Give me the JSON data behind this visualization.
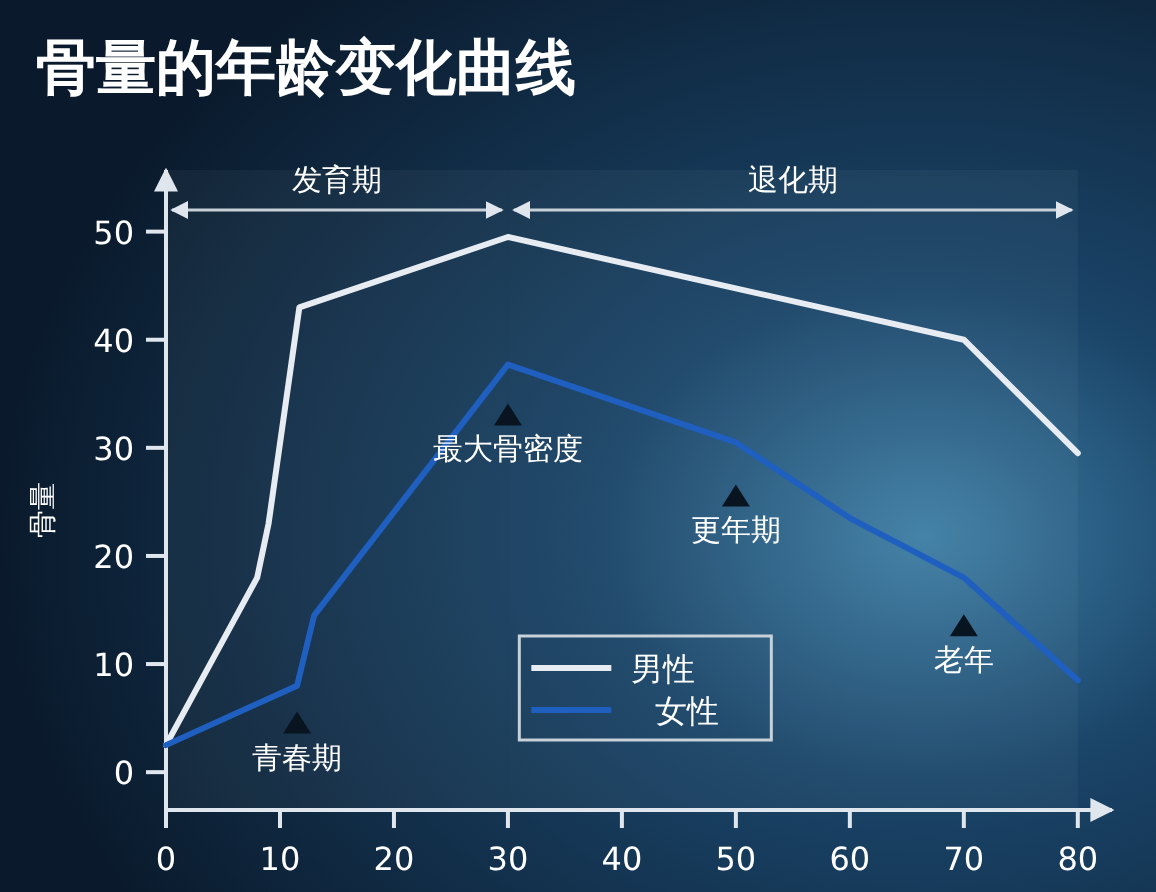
{
  "chart_data": {
    "type": "line",
    "title": "骨量的年龄变化曲线",
    "ylabel": "骨量",
    "xlim": [
      0,
      83
    ],
    "ylim": [
      -3.5,
      55.7
    ],
    "xticks": [
      0,
      10,
      20,
      30,
      40,
      50,
      60,
      70,
      80
    ],
    "yticks": [
      0,
      10,
      20,
      30,
      40,
      50
    ],
    "grid": false,
    "legend": "bottom",
    "marker": "none",
    "line_style": "solid",
    "series": [
      {
        "name": "男性",
        "color": "#e6ecf2",
        "x": [
          0,
          8,
          9,
          11.7,
          30,
          70,
          80
        ],
        "values": [
          2.5,
          18,
          23,
          43,
          49.5,
          40,
          29.5
        ]
      },
      {
        "name": "女性",
        "color": "#1f5fbf",
        "x": [
          0,
          11.5,
          13,
          30,
          50,
          60,
          70,
          80
        ],
        "values": [
          2.5,
          8,
          14.5,
          37.7,
          30.5,
          23.5,
          18,
          8.5
        ]
      }
    ],
    "annotations": [
      {
        "text": "青春期",
        "x": 11.5,
        "y": 4.5
      },
      {
        "text": "最大骨密度",
        "x": 30,
        "y": 33
      },
      {
        "text": "更年期",
        "x": 50,
        "y": 25.5
      },
      {
        "text": "老年",
        "x": 70,
        "y": 13.5
      }
    ],
    "bands": [
      {
        "axis": "x",
        "from": 0,
        "to": 30,
        "label": "发育期",
        "color": "#c8d0d8"
      },
      {
        "axis": "x",
        "from": 30,
        "to": 80,
        "label": "退化期",
        "color": "#c8d0d8"
      }
    ]
  }
}
